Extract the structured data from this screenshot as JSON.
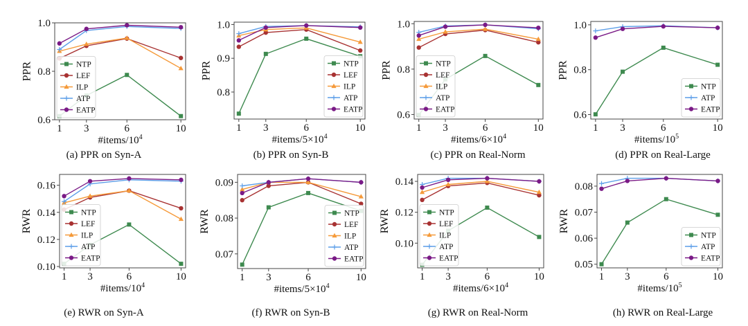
{
  "series_styles": {
    "NTP": {
      "color": "#3e8a4f",
      "marker": "square"
    },
    "LEF": {
      "color": "#a83232",
      "marker": "circle"
    },
    "ILP": {
      "color": "#f59a3a",
      "marker": "triangle"
    },
    "ATP": {
      "color": "#5c9ee8",
      "marker": "plus"
    },
    "EATP": {
      "color": "#7a1a86",
      "marker": "circle"
    }
  },
  "chart_data": [
    {
      "type": "line",
      "id": "a",
      "caption": "(a) PPR on Syn-A",
      "xlabel_base": "#items/10",
      "xlabel_exp": "4",
      "ylabel": "PPR",
      "x": [
        1,
        3,
        6,
        10
      ],
      "xticks": [
        "1",
        "3",
        "6",
        "10"
      ],
      "ylim": [
        0.6,
        1.0
      ],
      "yticks": [
        "0.6",
        "0.8",
        "1.0"
      ],
      "ytick_values": [
        0.6,
        0.8,
        1.0
      ],
      "legend": "lower-left",
      "series": [
        {
          "name": "NTP",
          "values": [
            0.615,
            0.7,
            0.785,
            0.615
          ]
        },
        {
          "name": "LEF",
          "values": [
            0.853,
            0.905,
            0.935,
            0.855
          ]
        },
        {
          "name": "ILP",
          "values": [
            0.883,
            0.912,
            0.937,
            0.812
          ]
        },
        {
          "name": "ATP",
          "values": [
            0.89,
            0.968,
            0.985,
            0.977
          ]
        },
        {
          "name": "EATP",
          "values": [
            0.915,
            0.975,
            0.99,
            0.982
          ]
        }
      ]
    },
    {
      "type": "line",
      "id": "b",
      "caption": "(b) PPR on Syn-B",
      "xlabel_base": "#items/5×10",
      "xlabel_exp": "4",
      "ylabel": "PPR",
      "x": [
        1,
        3,
        6,
        10
      ],
      "xticks": [
        "1",
        "3",
        "6",
        "10"
      ],
      "ylim": [
        0.72,
        1.007
      ],
      "yticks": [
        "0.8",
        "0.9",
        "1.0"
      ],
      "ytick_values": [
        0.8,
        0.9,
        1.0
      ],
      "legend": "lower-right",
      "series": [
        {
          "name": "NTP",
          "values": [
            0.736,
            0.913,
            0.958,
            0.906
          ]
        },
        {
          "name": "LEF",
          "values": [
            0.934,
            0.976,
            0.985,
            0.923
          ]
        },
        {
          "name": "ILP",
          "values": [
            0.967,
            0.985,
            0.99,
            0.948
          ]
        },
        {
          "name": "ATP",
          "values": [
            0.973,
            0.994,
            0.997,
            0.993
          ]
        },
        {
          "name": "EATP",
          "values": [
            0.953,
            0.991,
            0.997,
            0.991
          ]
        }
      ]
    },
    {
      "type": "line",
      "id": "c",
      "caption": "(c) PPR on Real-Norm",
      "xlabel_base": "#items/6×10",
      "xlabel_exp": "4",
      "ylabel": "PPR",
      "x": [
        1,
        3,
        6,
        10
      ],
      "xticks": [
        "1",
        "3",
        "6",
        "10"
      ],
      "ylim": [
        0.58,
        1.01
      ],
      "yticks": [
        "0.6",
        "0.8",
        "1.0"
      ],
      "ytick_values": [
        0.6,
        0.8,
        1.0
      ],
      "legend": "lower-left",
      "series": [
        {
          "name": "NTP",
          "values": [
            0.598,
            0.755,
            0.858,
            0.73
          ]
        },
        {
          "name": "LEF",
          "values": [
            0.895,
            0.955,
            0.972,
            0.918
          ]
        },
        {
          "name": "ILP",
          "values": [
            0.932,
            0.964,
            0.976,
            0.932
          ]
        },
        {
          "name": "ATP",
          "values": [
            0.962,
            0.99,
            0.995,
            0.978
          ]
        },
        {
          "name": "EATP",
          "values": [
            0.948,
            0.987,
            0.995,
            0.982
          ]
        }
      ]
    },
    {
      "type": "line",
      "id": "d",
      "caption": "(d) PPR on Real-Large",
      "xlabel_base": "#items/10",
      "xlabel_exp": "5",
      "ylabel": "PPR",
      "x": [
        1,
        3,
        6,
        10
      ],
      "xticks": [
        "1",
        "3",
        "6",
        "10"
      ],
      "ylim": [
        0.58,
        1.015
      ],
      "yticks": [
        "0.6",
        "0.8",
        "1.0"
      ],
      "ytick_values": [
        0.6,
        0.8,
        1.0
      ],
      "legend": "lower-right",
      "series": [
        {
          "name": "NTP",
          "values": [
            0.601,
            0.791,
            0.898,
            0.822
          ]
        },
        {
          "name": "ATP",
          "values": [
            0.973,
            0.992,
            0.996,
            0.987
          ]
        },
        {
          "name": "EATP",
          "values": [
            0.943,
            0.982,
            0.993,
            0.987
          ]
        }
      ]
    },
    {
      "type": "line",
      "id": "e",
      "caption": "(e) RWR on Syn-A",
      "xlabel_base": "#items/10",
      "xlabel_exp": "4",
      "ylabel": "RWR",
      "x": [
        1,
        3,
        6,
        10
      ],
      "xticks": [
        "1",
        "3",
        "6",
        "10"
      ],
      "ylim": [
        0.099,
        0.168
      ],
      "yticks": [
        "0.10",
        "0.12",
        "0.14",
        "0.16"
      ],
      "ytick_values": [
        0.1,
        0.12,
        0.14,
        0.16
      ],
      "legend": "lower-left",
      "series": [
        {
          "name": "NTP",
          "values": [
            0.102,
            0.116,
            0.131,
            0.102
          ]
        },
        {
          "name": "LEF",
          "values": [
            0.142,
            0.151,
            0.156,
            0.143
          ]
        },
        {
          "name": "ILP",
          "values": [
            0.147,
            0.152,
            0.156,
            0.135
          ]
        },
        {
          "name": "ATP",
          "values": [
            0.148,
            0.161,
            0.164,
            0.163
          ]
        },
        {
          "name": "EATP",
          "values": [
            0.152,
            0.163,
            0.165,
            0.164
          ]
        }
      ]
    },
    {
      "type": "line",
      "id": "f",
      "caption": "(f) RWR on Syn-B",
      "xlabel_base": "#items/5×10",
      "xlabel_exp": "4",
      "ylabel": "RWR",
      "x": [
        1,
        3,
        6,
        10
      ],
      "xticks": [
        "1",
        "3",
        "6",
        "10"
      ],
      "ylim": [
        0.0659,
        0.0922
      ],
      "yticks": [
        "0.07",
        "0.08",
        "0.09"
      ],
      "ytick_values": [
        0.07,
        0.08,
        0.09
      ],
      "legend": "lower-right",
      "series": [
        {
          "name": "NTP",
          "values": [
            0.067,
            0.083,
            0.087,
            0.082
          ]
        },
        {
          "name": "LEF",
          "values": [
            0.085,
            0.089,
            0.09,
            0.084
          ]
        },
        {
          "name": "ILP",
          "values": [
            0.088,
            0.09,
            0.09,
            0.086
          ]
        },
        {
          "name": "ATP",
          "values": [
            0.089,
            0.09,
            0.091,
            0.09
          ]
        },
        {
          "name": "EATP",
          "values": [
            0.087,
            0.09,
            0.091,
            0.09
          ]
        }
      ]
    },
    {
      "type": "line",
      "id": "g",
      "caption": "(g) RWR on Real-Norm",
      "xlabel_base": "#items/6×10",
      "xlabel_exp": "4",
      "ylabel": "RWR",
      "x": [
        1,
        3,
        6,
        10
      ],
      "xticks": [
        "1",
        "3",
        "6",
        "10"
      ],
      "ylim": [
        0.084,
        0.1445
      ],
      "yticks": [
        "0.10",
        "0.12",
        "0.14"
      ],
      "ytick_values": [
        0.1,
        0.12,
        0.14
      ],
      "legend": "lower-left",
      "series": [
        {
          "name": "NTP",
          "values": [
            0.086,
            0.108,
            0.123,
            0.104
          ]
        },
        {
          "name": "LEF",
          "values": [
            0.128,
            0.137,
            0.139,
            0.131
          ]
        },
        {
          "name": "ILP",
          "values": [
            0.133,
            0.138,
            0.14,
            0.133
          ]
        },
        {
          "name": "ATP",
          "values": [
            0.138,
            0.142,
            0.142,
            0.14
          ]
        },
        {
          "name": "EATP",
          "values": [
            0.136,
            0.141,
            0.142,
            0.14
          ]
        }
      ]
    },
    {
      "type": "line",
      "id": "h",
      "caption": "(h) RWR on Real-Large",
      "xlabel_base": "#items/10",
      "xlabel_exp": "5",
      "ylabel": "RWR",
      "x": [
        1,
        3,
        6,
        10
      ],
      "xticks": [
        "1",
        "3",
        "6",
        "10"
      ],
      "ylim": [
        0.0486,
        0.0845
      ],
      "yticks": [
        "0.05",
        "0.06",
        "0.07",
        "0.08"
      ],
      "ytick_values": [
        0.05,
        0.06,
        0.07,
        0.08
      ],
      "legend": "lower-right",
      "series": [
        {
          "name": "NTP",
          "values": [
            0.05,
            0.066,
            0.075,
            0.069
          ]
        },
        {
          "name": "ATP",
          "values": [
            0.081,
            0.083,
            0.083,
            0.082
          ]
        },
        {
          "name": "EATP",
          "values": [
            0.079,
            0.082,
            0.083,
            0.082
          ]
        }
      ]
    }
  ]
}
